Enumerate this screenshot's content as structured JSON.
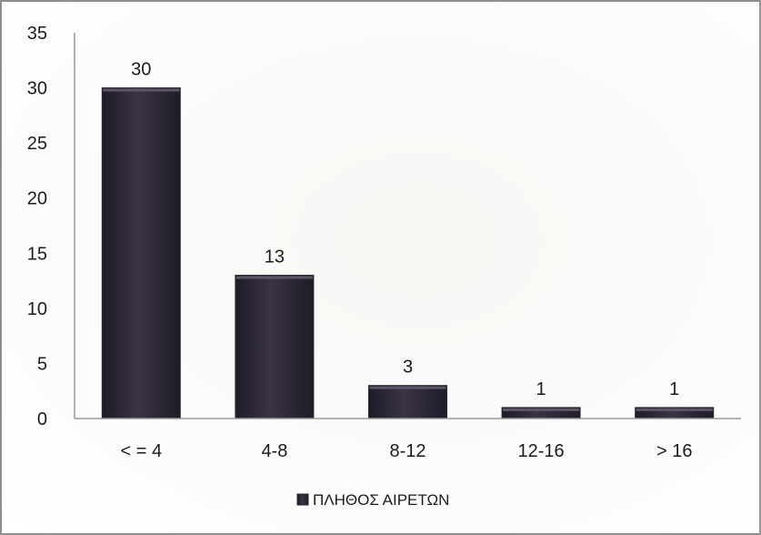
{
  "chart_data": {
    "type": "bar",
    "categories": [
      "< = 4",
      "4-8",
      "8-12",
      "12-16",
      "> 16"
    ],
    "series": [
      {
        "name": "ΠΛΗΘΟΣ ΑΙΡΕΤΩΝ",
        "values": [
          30,
          13,
          3,
          1,
          1
        ]
      }
    ],
    "ylim": [
      0,
      35
    ],
    "yticks": [
      0,
      5,
      10,
      15,
      20,
      25,
      30,
      35
    ],
    "grid": false,
    "legend": "bottom",
    "colors": {
      "bar": "#2b2635",
      "bar_highlight": "#5c5566",
      "axis": "#9a9a9a"
    }
  }
}
